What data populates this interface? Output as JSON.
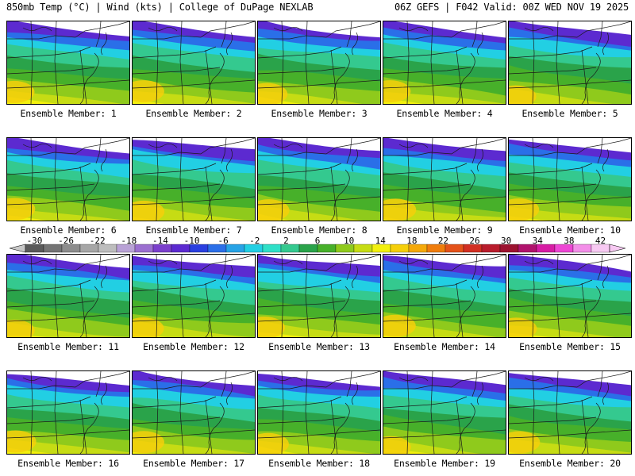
{
  "header": {
    "left": "850mb Temp (°C) | Wind (kts) | College of DuPage NEXLAB",
    "right": "06Z GEFS | F042 Valid: 00Z WED NOV 19 2025"
  },
  "panels": [
    {
      "label": "Ensemble Member: 1"
    },
    {
      "label": "Ensemble Member: 2"
    },
    {
      "label": "Ensemble Member: 3"
    },
    {
      "label": "Ensemble Member: 4"
    },
    {
      "label": "Ensemble Member: 5"
    },
    {
      "label": "Ensemble Member: 6"
    },
    {
      "label": "Ensemble Member: 7"
    },
    {
      "label": "Ensemble Member: 8"
    },
    {
      "label": "Ensemble Member: 9"
    },
    {
      "label": "Ensemble Member: 10"
    },
    {
      "label": "Ensemble Member: 11"
    },
    {
      "label": "Ensemble Member: 12"
    },
    {
      "label": "Ensemble Member: 13"
    },
    {
      "label": "Ensemble Member: 14"
    },
    {
      "label": "Ensemble Member: 15"
    },
    {
      "label": "Ensemble Member: 16"
    },
    {
      "label": "Ensemble Member: 17"
    },
    {
      "label": "Ensemble Member: 18"
    },
    {
      "label": "Ensemble Member: 19"
    },
    {
      "label": "Ensemble Member: 20"
    }
  ],
  "colorbar": {
    "labels": [
      "-30",
      "-26",
      "-22",
      "-18",
      "-14",
      "-10",
      "-6",
      "-2",
      "2",
      "6",
      "10",
      "14",
      "18",
      "22",
      "26",
      "30",
      "34",
      "38",
      "42"
    ],
    "colors": [
      "#5a5a5a",
      "#747474",
      "#8c8c8c",
      "#a6a6a6",
      "#bdbdbd",
      "#b9a2d6",
      "#9b6fd0",
      "#7b3fcc",
      "#5c2ad0",
      "#2a3fe0",
      "#2b6fe8",
      "#27a3e6",
      "#22cfe3",
      "#2fe0c8",
      "#34c98f",
      "#2aa34a",
      "#47b02a",
      "#8fca1c",
      "#c6dc14",
      "#f2f00e",
      "#f5cf0a",
      "#f5a90a",
      "#ef7d0c",
      "#e4521a",
      "#d22f22",
      "#b91c2c",
      "#9c1230",
      "#b0136d",
      "#d71ca4",
      "#ee46d4",
      "#f38ee8",
      "#f7c9f2"
    ],
    "label_colors": {
      "cold_end": "#c8c8c8",
      "warm_end": "#f7c9f2"
    }
  }
}
